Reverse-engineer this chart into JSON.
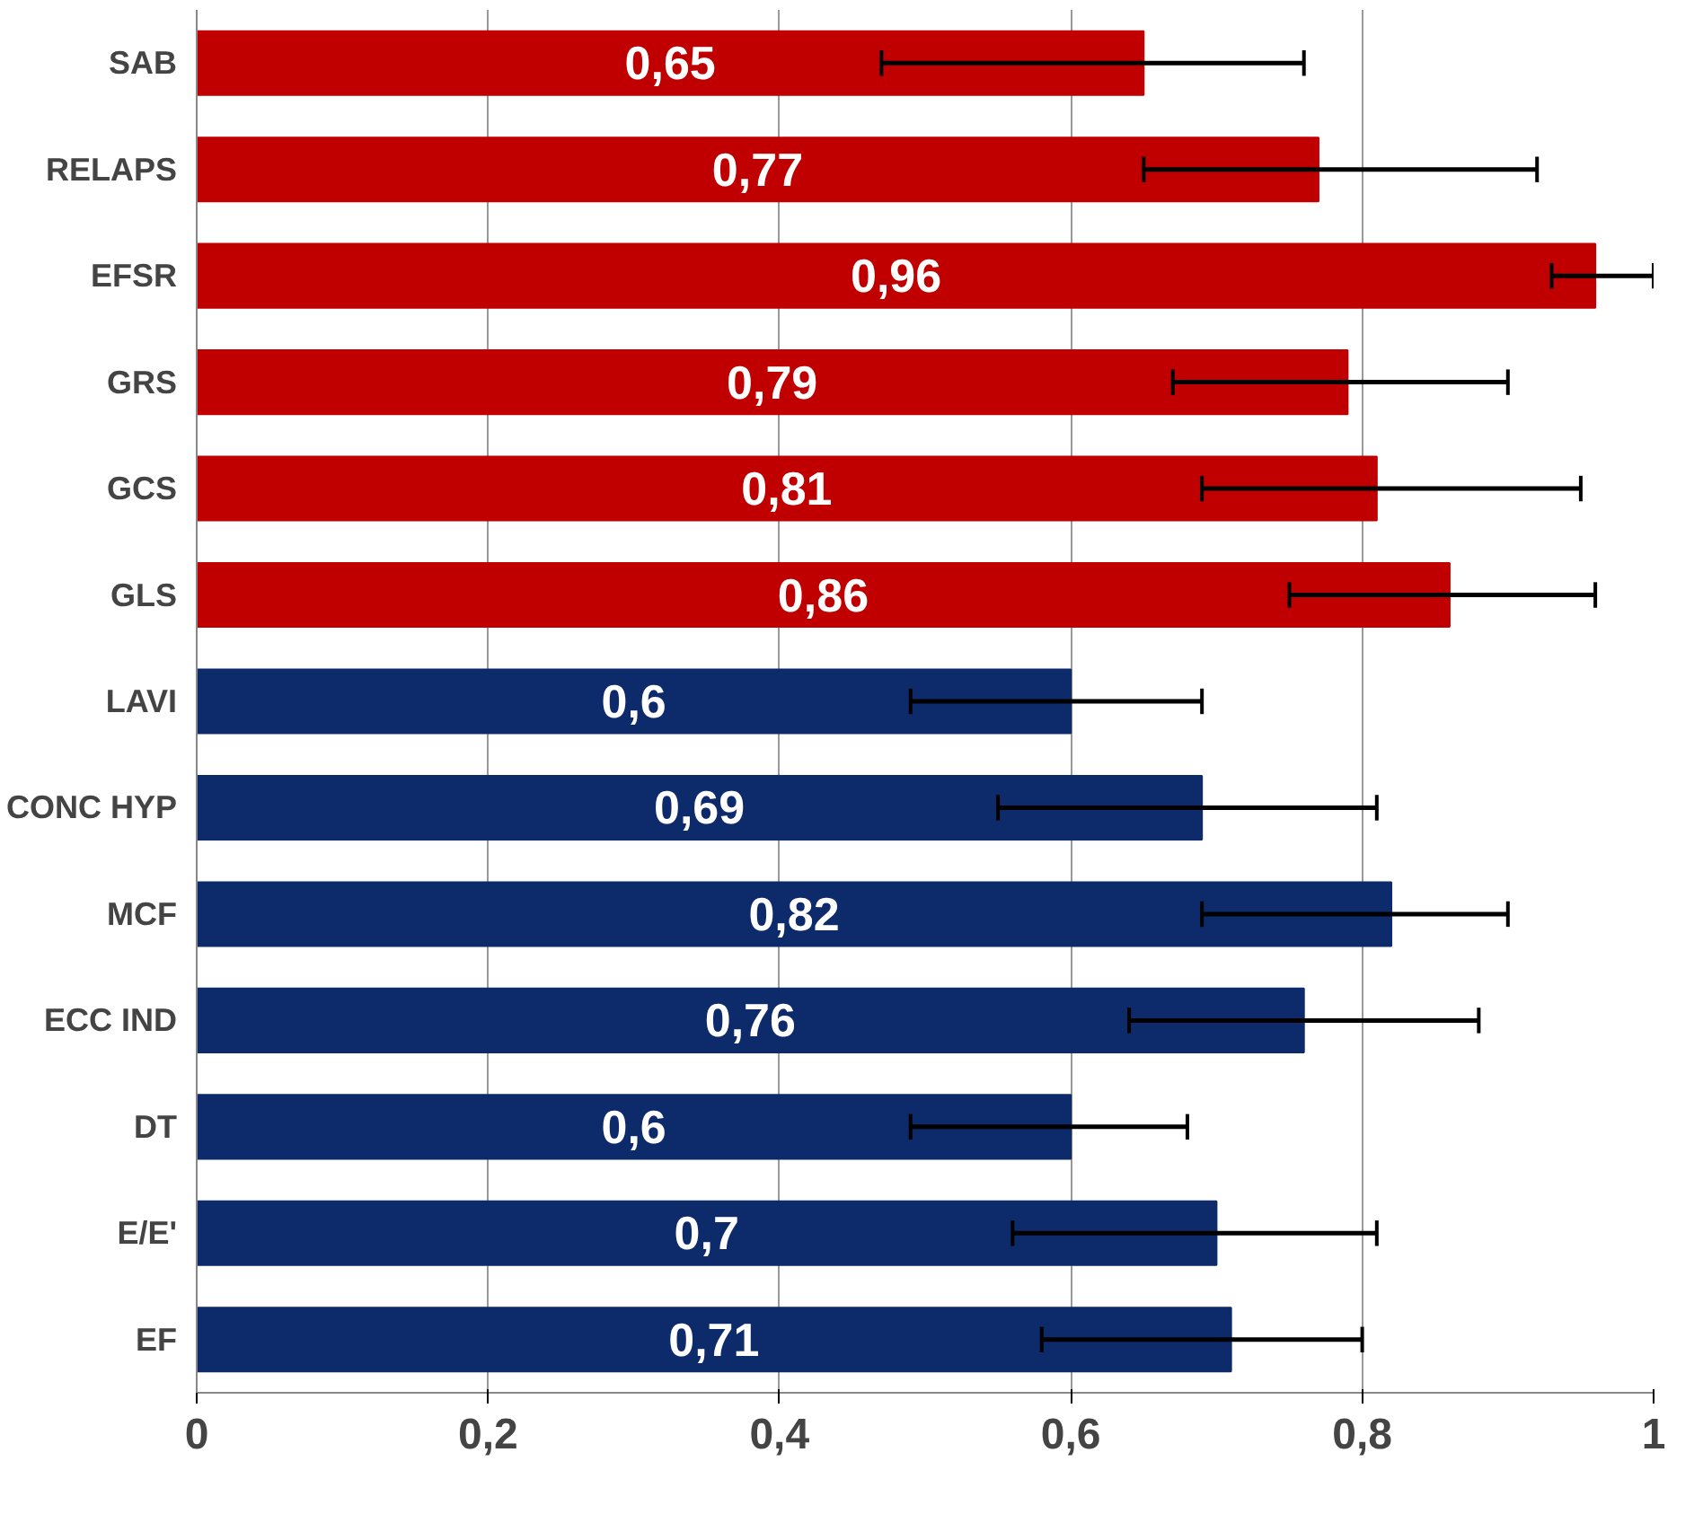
{
  "chart_data": {
    "type": "bar",
    "orientation": "horizontal",
    "categories": [
      "SAB",
      "RELAPS",
      "EFSR",
      "GRS",
      "GCS",
      "GLS",
      "LAVI",
      "CONC HYP",
      "MCF",
      "ECC IND",
      "DT",
      "E/E'",
      "EF"
    ],
    "values": [
      0.65,
      0.77,
      0.96,
      0.79,
      0.81,
      0.86,
      0.6,
      0.69,
      0.82,
      0.76,
      0.6,
      0.7,
      0.71
    ],
    "value_labels": [
      "0,65",
      "0,77",
      "0,96",
      "0,79",
      "0,81",
      "0,86",
      "0,6",
      "0,69",
      "0,82",
      "0,76",
      "0,6",
      "0,7",
      "0,71"
    ],
    "colors": [
      "#c00000",
      "#c00000",
      "#c00000",
      "#c00000",
      "#c00000",
      "#c00000",
      "#0d2a6b",
      "#0d2a6b",
      "#0d2a6b",
      "#0d2a6b",
      "#0d2a6b",
      "#0d2a6b",
      "#0d2a6b"
    ],
    "errors": [
      [
        0.47,
        0.76
      ],
      [
        0.65,
        0.92
      ],
      [
        0.93,
        1.0
      ],
      [
        0.67,
        0.9
      ],
      [
        0.69,
        0.95
      ],
      [
        0.75,
        0.96
      ],
      [
        0.49,
        0.69
      ],
      [
        0.55,
        0.81
      ],
      [
        0.69,
        0.9
      ],
      [
        0.64,
        0.88
      ],
      [
        0.49,
        0.68
      ],
      [
        0.56,
        0.81
      ],
      [
        0.58,
        0.8
      ]
    ],
    "xlim": [
      0,
      1
    ],
    "xticks": [
      0,
      {
        "value": 0.2,
        "label": "0,2"
      },
      {
        "value": 0.4,
        "label": "0,4"
      },
      {
        "value": 0.6,
        "label": "0,6"
      },
      {
        "value": 0.8,
        "label": "0,8"
      },
      1
    ],
    "grid": "x"
  }
}
